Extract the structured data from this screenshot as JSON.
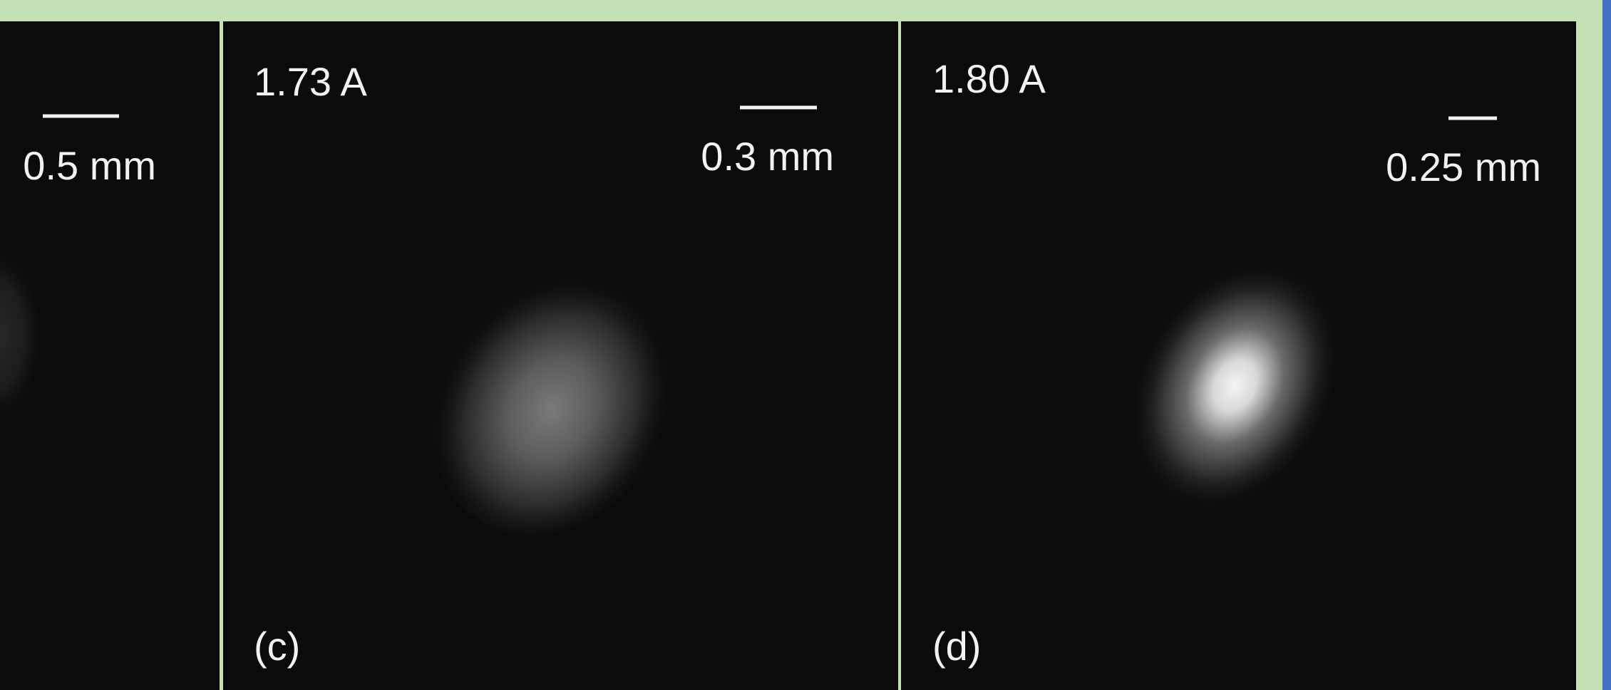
{
  "panels": [
    {
      "scale_label": "0.5 mm"
    },
    {
      "current": "1.73 A",
      "scale_label": "0.3 mm",
      "tag": "(c)"
    },
    {
      "current": "1.80 A",
      "scale_label": "0.25 mm",
      "tag": "(d)"
    }
  ]
}
